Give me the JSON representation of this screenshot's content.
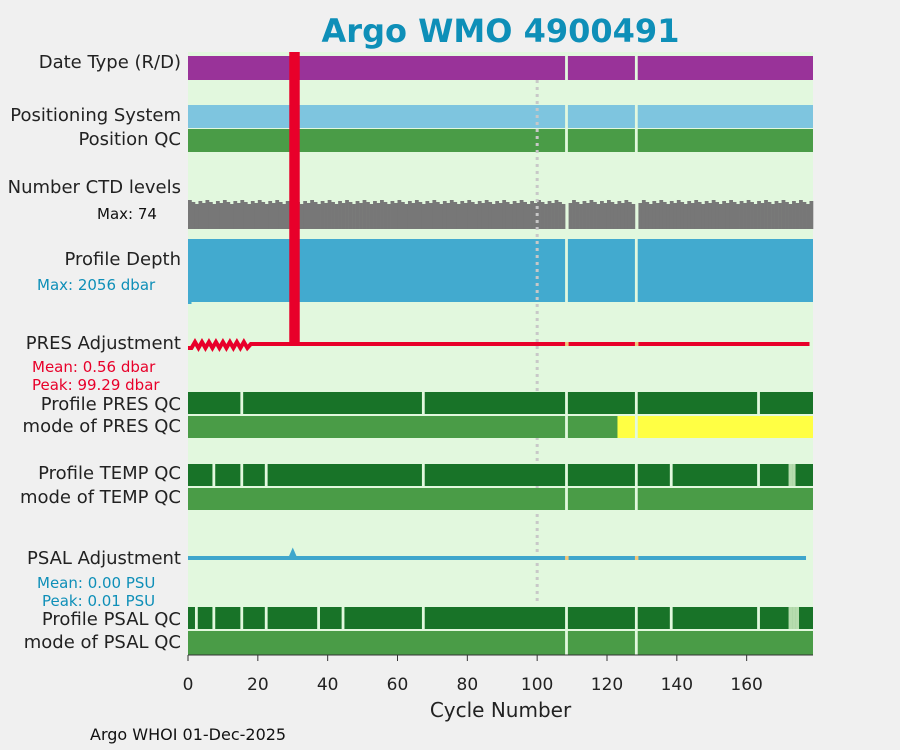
{
  "title": "Argo WMO 4900491",
  "footer": "Argo WHOI 01-Dec-2025",
  "rows": {
    "date_type": "Date Type (R/D)",
    "positioning_system": "Positioning System",
    "position_qc": "Position QC",
    "ctd_levels": "Number CTD levels",
    "ctd_max": "Max: 74",
    "profile_depth": "Profile Depth",
    "depth_max": "Max: 2056 dbar",
    "pres_adjustment": "PRES Adjustment",
    "pres_mean": "Mean: 0.56 dbar",
    "pres_peak": "Peak: 99.29 dbar",
    "profile_pres_qc": "Profile PRES QC",
    "mode_pres_qc": "mode of PRES QC",
    "profile_temp_qc": "Profile TEMP QC",
    "mode_temp_qc": "mode of TEMP QC",
    "psal_adjustment": "PSAL Adjustment",
    "psal_mean": "Mean: 0.00 PSU",
    "psal_peak": "Peak: 0.01 PSU",
    "profile_psal_qc": "Profile PSAL QC",
    "mode_psal_qc": "mode of PSAL QC"
  },
  "colors": {
    "title": "#0e8fb8",
    "background": "#e2f8de",
    "date_type": "#993399",
    "positioning": "#7ec5df",
    "qc_good": "#4a9c47",
    "qc_profile_a": "#187328",
    "qc_yellow": "#ffff44",
    "qc_light": "#b6dcae",
    "ctd": "#777777",
    "depth": "#42aacf",
    "pres_line": "#e8002a",
    "psal_line": "#3fa6cc",
    "gap_marker": "#f2c87a",
    "dotted_ref": "#c8c8c8"
  },
  "chart_data": {
    "type": "timeline",
    "title": "Argo WMO 4900491",
    "xlabel": "Cycle Number",
    "xlim": [
      0,
      179
    ],
    "xticks": [
      0,
      20,
      40,
      60,
      80,
      100,
      120,
      140,
      160
    ],
    "reference_line_cycle": 100,
    "missing_cycles": [
      108,
      128
    ],
    "pres_spike_cycles": [
      29,
      30,
      31
    ],
    "pres_adjustment_mean_dbar": 0.56,
    "pres_adjustment_peak_dbar": 99.29,
    "psal_adjustment_mean_psu": 0.0,
    "psal_adjustment_peak_psu": 0.01,
    "ctd_levels_max": 74,
    "profile_depth_max_dbar": 2056,
    "pres_qc_mode_yellow_from_cycle": 123,
    "profile_pres_qc_breaks": [
      15,
      67,
      108,
      128,
      163
    ],
    "profile_temp_qc_breaks": [
      7,
      15,
      22,
      67,
      108,
      128,
      138,
      163
    ],
    "profile_temp_qc_light": [
      172,
      173
    ],
    "profile_psal_qc_breaks": [
      2,
      7,
      15,
      22,
      37,
      44,
      67,
      108,
      128,
      138,
      163
    ],
    "profile_psal_qc_light": [
      172,
      173,
      174
    ]
  }
}
